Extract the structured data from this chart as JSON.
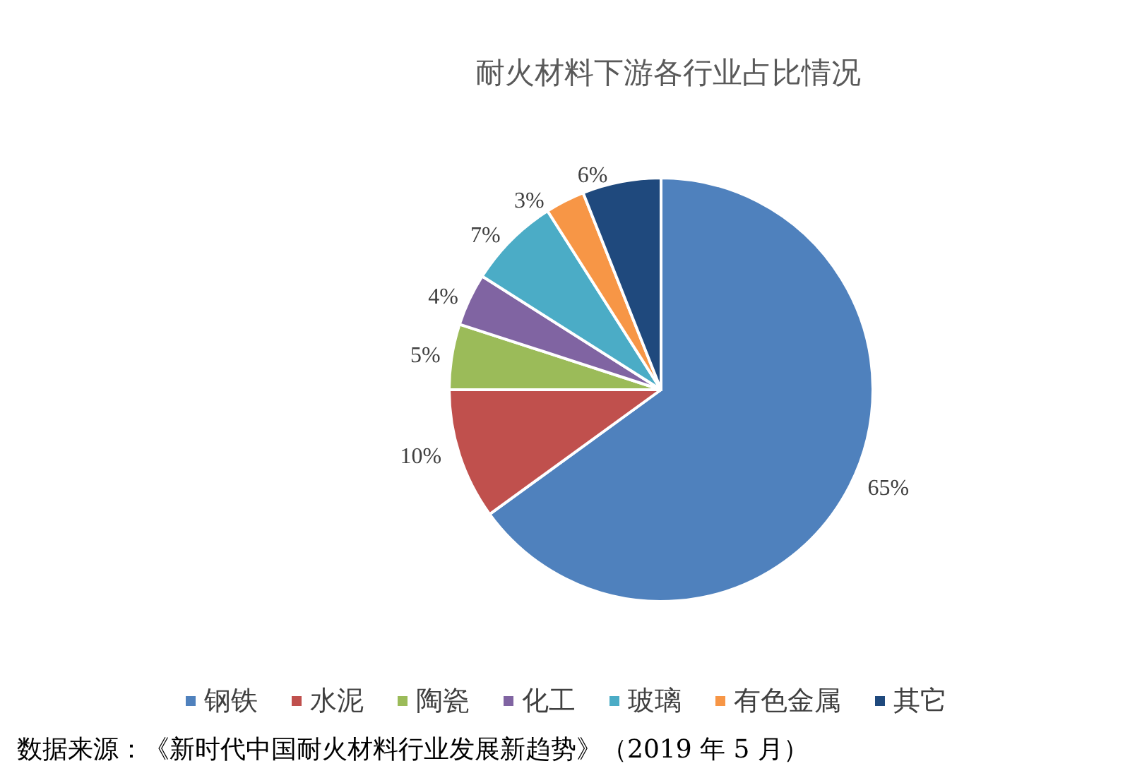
{
  "chart_data": {
    "type": "pie",
    "title": "耐火材料下游各行业占比情况",
    "categories": [
      "钢铁",
      "水泥",
      "陶瓷",
      "化工",
      "玻璃",
      "有色金属",
      "其它"
    ],
    "values": [
      65,
      10,
      5,
      4,
      7,
      3,
      6
    ],
    "value_labels": [
      "65%",
      "10%",
      "5%",
      "4%",
      "7%",
      "3%",
      "6%"
    ],
    "colors": [
      "#4f81bd",
      "#c0504d",
      "#9bbb59",
      "#8064a2",
      "#4bacc6",
      "#f79646",
      "#1f497d"
    ],
    "legend": "bottom",
    "annotations": [
      "数据来源：《新时代中国耐火材料行业发展新趋势》（2019 年 5 月）"
    ]
  }
}
